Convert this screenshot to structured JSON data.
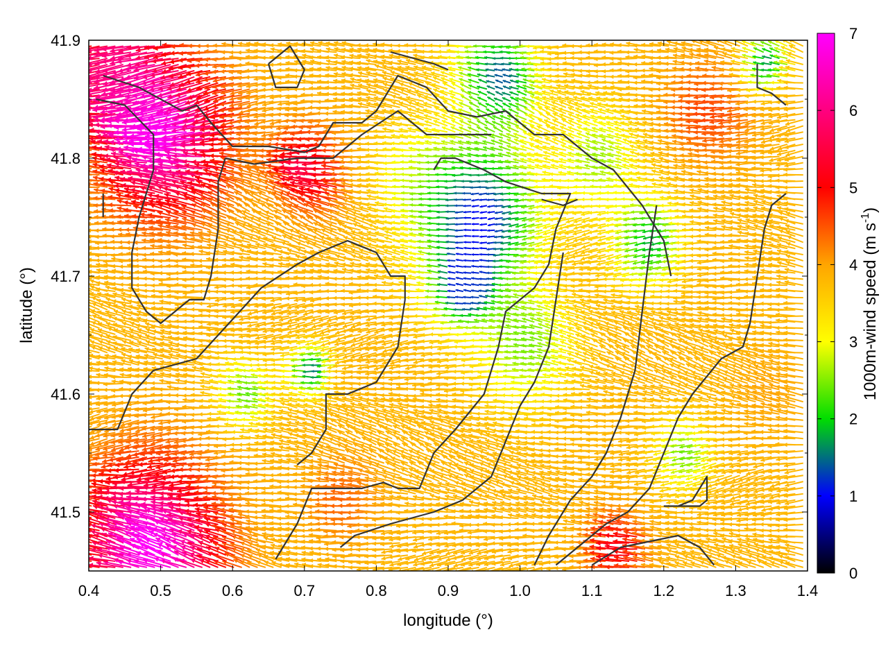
{
  "chart_data": {
    "type": "vector-field",
    "xlabel": "longitude (°)",
    "ylabel": "latitude (°)",
    "xlim": [
      0.4,
      1.4
    ],
    "ylim": [
      41.45,
      41.9
    ],
    "xticks": [
      "0.4",
      "0.5",
      "0.6",
      "0.7",
      "0.8",
      "0.9",
      "1.0",
      "1.1",
      "1.2",
      "1.3",
      "1.4"
    ],
    "yticks": [
      "41.5",
      "41.6",
      "41.7",
      "41.8",
      "41.9"
    ],
    "colorbar": {
      "label": "1000m-wind speed (m s",
      "label_superscript": "-1",
      "label_suffix": ")",
      "range": [
        0,
        7
      ],
      "ticks": [
        "0",
        "1",
        "2",
        "3",
        "4",
        "5",
        "6",
        "7"
      ],
      "colors": [
        "#000000",
        "#0000ff",
        "#00dd00",
        "#ffff00",
        "#ffa500",
        "#ff0000",
        "#ff00ff"
      ]
    },
    "speed_regions": [
      {
        "lon": 0.52,
        "lat": 41.82,
        "r": 0.09,
        "speed": 7.0
      },
      {
        "lon": 0.5,
        "lat": 41.47,
        "r": 0.1,
        "speed": 7.0
      },
      {
        "lon": 0.45,
        "lat": 41.88,
        "r": 0.07,
        "speed": 5.8
      },
      {
        "lon": 0.72,
        "lat": 41.79,
        "r": 0.05,
        "speed": 5.6
      },
      {
        "lon": 0.95,
        "lat": 41.75,
        "r": 0.09,
        "speed": 1.0
      },
      {
        "lon": 0.93,
        "lat": 41.69,
        "r": 0.04,
        "speed": 1.2
      },
      {
        "lon": 0.98,
        "lat": 41.87,
        "r": 0.06,
        "speed": 1.4
      },
      {
        "lon": 0.72,
        "lat": 41.62,
        "r": 0.03,
        "speed": 1.5
      },
      {
        "lon": 1.19,
        "lat": 41.73,
        "r": 0.05,
        "speed": 1.8
      },
      {
        "lon": 1.35,
        "lat": 41.88,
        "r": 0.03,
        "speed": 1.5
      },
      {
        "lon": 0.63,
        "lat": 41.6,
        "r": 0.04,
        "speed": 2.3
      },
      {
        "lon": 1.24,
        "lat": 41.55,
        "r": 0.04,
        "speed": 2.4
      },
      {
        "lon": 1.02,
        "lat": 41.64,
        "r": 0.07,
        "speed": 2.5
      },
      {
        "lon": 1.12,
        "lat": 41.8,
        "r": 0.06,
        "speed": 2.6
      },
      {
        "lon": 0.86,
        "lat": 41.79,
        "r": 0.05,
        "speed": 3.2
      },
      {
        "lon": 0.77,
        "lat": 41.51,
        "r": 0.05,
        "speed": 4.4
      },
      {
        "lon": 1.36,
        "lat": 41.6,
        "r": 0.05,
        "speed": 4.0
      },
      {
        "lon": 1.28,
        "lat": 41.84,
        "r": 0.06,
        "speed": 4.6
      },
      {
        "lon": 1.15,
        "lat": 41.47,
        "r": 0.04,
        "speed": 5.2
      }
    ],
    "background_speed": 3.8,
    "wind_direction": "mostly from east to west (arrows pointing west / south-west)",
    "contours": [
      [
        [
          0.42,
          41.87
        ],
        [
          0.47,
          41.86
        ],
        [
          0.53,
          41.84
        ],
        [
          0.55,
          41.845
        ],
        [
          0.57,
          41.83
        ],
        [
          0.6,
          41.81
        ],
        [
          0.65,
          41.81
        ],
        [
          0.7,
          41.805
        ],
        [
          0.72,
          41.81
        ],
        [
          0.74,
          41.83
        ],
        [
          0.78,
          41.83
        ],
        [
          0.8,
          41.84
        ],
        [
          0.83,
          41.87
        ],
        [
          0.87,
          41.86
        ],
        [
          0.9,
          41.84
        ],
        [
          0.94,
          41.835
        ],
        [
          0.98,
          41.84
        ],
        [
          1.02,
          41.82
        ],
        [
          1.06,
          41.82
        ],
        [
          1.1,
          41.8
        ],
        [
          1.13,
          41.79
        ],
        [
          1.17,
          41.76
        ],
        [
          1.2,
          41.73
        ],
        [
          1.21,
          41.7
        ]
      ],
      [
        [
          0.41,
          41.85
        ],
        [
          0.45,
          41.845
        ],
        [
          0.49,
          41.82
        ],
        [
          0.49,
          41.79
        ],
        [
          0.47,
          41.75
        ],
        [
          0.46,
          41.72
        ],
        [
          0.46,
          41.69
        ],
        [
          0.48,
          41.67
        ],
        [
          0.5,
          41.66
        ],
        [
          0.52,
          41.67
        ],
        [
          0.54,
          41.68
        ],
        [
          0.56,
          41.68
        ],
        [
          0.57,
          41.7
        ],
        [
          0.58,
          41.74
        ],
        [
          0.58,
          41.78
        ],
        [
          0.59,
          41.8
        ]
      ],
      [
        [
          0.59,
          41.8
        ],
        [
          0.63,
          41.795
        ],
        [
          0.69,
          41.8
        ],
        [
          0.74,
          41.8
        ],
        [
          0.78,
          41.82
        ],
        [
          0.83,
          41.84
        ],
        [
          0.87,
          41.82
        ],
        [
          0.9,
          41.82
        ],
        [
          0.93,
          41.82
        ],
        [
          0.96,
          41.82
        ]
      ],
      [
        [
          0.4,
          41.57
        ],
        [
          0.44,
          41.57
        ],
        [
          0.46,
          41.6
        ],
        [
          0.49,
          41.62
        ],
        [
          0.55,
          41.63
        ],
        [
          0.58,
          41.65
        ],
        [
          0.61,
          41.67
        ],
        [
          0.64,
          41.69
        ],
        [
          0.69,
          41.71
        ],
        [
          0.72,
          41.72
        ],
        [
          0.76,
          41.73
        ],
        [
          0.8,
          41.72
        ],
        [
          0.82,
          41.7
        ],
        [
          0.84,
          41.7
        ],
        [
          0.84,
          41.68
        ],
        [
          0.83,
          41.64
        ],
        [
          0.8,
          41.61
        ],
        [
          0.76,
          41.6
        ],
        [
          0.73,
          41.6
        ],
        [
          0.73,
          41.57
        ],
        [
          0.71,
          41.55
        ],
        [
          0.69,
          41.54
        ]
      ],
      [
        [
          0.66,
          41.46
        ],
        [
          0.69,
          41.49
        ],
        [
          0.71,
          41.52
        ],
        [
          0.74,
          41.52
        ],
        [
          0.78,
          41.52
        ],
        [
          0.81,
          41.525
        ],
        [
          0.83,
          41.52
        ],
        [
          0.86,
          41.52
        ],
        [
          0.88,
          41.55
        ],
        [
          0.91,
          41.57
        ],
        [
          0.95,
          41.6
        ],
        [
          0.97,
          41.64
        ],
        [
          0.98,
          41.67
        ],
        [
          1.0,
          41.68
        ],
        [
          1.02,
          41.69
        ],
        [
          1.04,
          41.71
        ],
        [
          1.05,
          41.74
        ],
        [
          1.07,
          41.77
        ],
        [
          1.03,
          41.77
        ],
        [
          0.98,
          41.78
        ],
        [
          0.95,
          41.79
        ],
        [
          0.91,
          41.8
        ],
        [
          0.89,
          41.8
        ],
        [
          0.88,
          41.79
        ]
      ],
      [
        [
          1.02,
          41.455
        ],
        [
          1.04,
          41.48
        ],
        [
          1.07,
          41.51
        ],
        [
          1.1,
          41.53
        ],
        [
          1.12,
          41.55
        ],
        [
          1.14,
          41.58
        ],
        [
          1.16,
          41.62
        ],
        [
          1.17,
          41.67
        ],
        [
          1.18,
          41.72
        ],
        [
          1.19,
          41.76
        ]
      ],
      [
        [
          0.75,
          41.47
        ],
        [
          0.77,
          41.48
        ],
        [
          0.82,
          41.49
        ],
        [
          0.88,
          41.5
        ],
        [
          0.92,
          41.51
        ],
        [
          0.96,
          41.53
        ],
        [
          0.98,
          41.56
        ],
        [
          1.0,
          41.59
        ],
        [
          1.02,
          41.61
        ],
        [
          1.04,
          41.64
        ],
        [
          1.05,
          41.68
        ],
        [
          1.06,
          41.72
        ]
      ],
      [
        [
          1.05,
          41.455
        ],
        [
          1.08,
          41.47
        ],
        [
          1.12,
          41.49
        ],
        [
          1.15,
          41.5
        ],
        [
          1.18,
          41.52
        ],
        [
          1.2,
          41.55
        ],
        [
          1.22,
          41.58
        ],
        [
          1.24,
          41.6
        ],
        [
          1.28,
          41.63
        ],
        [
          1.31,
          41.64
        ],
        [
          1.32,
          41.66
        ],
        [
          1.33,
          41.7
        ],
        [
          1.34,
          41.74
        ],
        [
          1.35,
          41.76
        ],
        [
          1.37,
          41.77
        ]
      ],
      [
        [
          1.2,
          41.505
        ],
        [
          1.23,
          41.505
        ],
        [
          1.25,
          41.505
        ],
        [
          1.26,
          41.51
        ],
        [
          1.26,
          41.53
        ],
        [
          1.25,
          41.52
        ],
        [
          1.24,
          41.51
        ],
        [
          1.22,
          41.505
        ]
      ],
      [
        [
          1.1,
          41.455
        ],
        [
          1.14,
          41.47
        ],
        [
          1.18,
          41.475
        ],
        [
          1.22,
          41.48
        ],
        [
          1.25,
          41.47
        ],
        [
          1.27,
          41.455
        ]
      ],
      [
        [
          0.65,
          41.88
        ],
        [
          0.68,
          41.895
        ],
        [
          0.7,
          41.875
        ],
        [
          0.69,
          41.86
        ],
        [
          0.66,
          41.86
        ],
        [
          0.65,
          41.88
        ]
      ],
      [
        [
          0.82,
          41.89
        ],
        [
          0.85,
          41.885
        ],
        [
          0.88,
          41.88
        ],
        [
          0.9,
          41.875
        ]
      ],
      [
        [
          1.33,
          41.88
        ],
        [
          1.33,
          41.86
        ],
        [
          1.35,
          41.855
        ],
        [
          1.37,
          41.845
        ]
      ],
      [
        [
          0.42,
          41.77
        ],
        [
          0.42,
          41.75
        ]
      ],
      [
        [
          1.03,
          41.765
        ],
        [
          1.06,
          41.76
        ],
        [
          1.08,
          41.765
        ]
      ]
    ]
  }
}
